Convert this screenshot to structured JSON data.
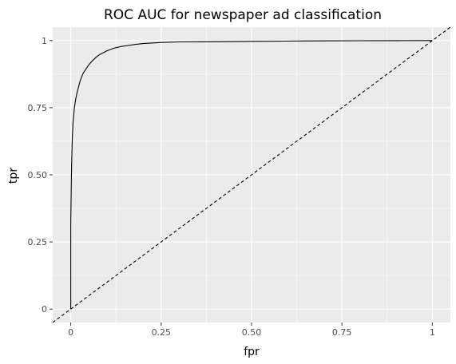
{
  "chart_data": {
    "type": "line",
    "title": "ROC AUC for newspaper ad classification",
    "xlabel": "fpr",
    "ylabel": "tpr",
    "xlim": [
      -0.05,
      1.05
    ],
    "ylim": [
      -0.05,
      1.05
    ],
    "x_ticks": [
      0,
      0.25,
      0.5,
      0.75,
      1
    ],
    "x_tick_labels": [
      "0",
      "0.25",
      "0.50",
      "0.75",
      "1"
    ],
    "y_ticks": [
      0,
      0.25,
      0.5,
      0.75,
      1
    ],
    "y_tick_labels": [
      "0",
      "0.25",
      "0.50",
      "0.75",
      "1"
    ],
    "grid": true,
    "colors": {
      "panel": "#ebebeb",
      "grid": "#ffffff",
      "curve": "#000000",
      "diagonal": "#000000",
      "tick_text": "#4d4d4d",
      "tick_mark": "#333333"
    },
    "series": [
      {
        "style": "solid",
        "x": [
          0,
          0,
          0.002,
          0.004,
          0.006,
          0.008,
          0.01,
          0.014,
          0.018,
          0.022,
          0.026,
          0.03,
          0.035,
          0.04,
          0.045,
          0.05,
          0.06,
          0.07,
          0.08,
          0.09,
          0.1,
          0.12,
          0.14,
          0.16,
          0.18,
          0.2,
          0.25,
          0.3,
          0.4,
          0.5,
          0.6,
          0.7,
          0.8,
          0.9,
          1
        ],
        "y": [
          0,
          0.33,
          0.52,
          0.63,
          0.69,
          0.72,
          0.75,
          0.785,
          0.81,
          0.83,
          0.85,
          0.865,
          0.88,
          0.89,
          0.9,
          0.91,
          0.925,
          0.938,
          0.948,
          0.955,
          0.962,
          0.972,
          0.978,
          0.982,
          0.986,
          0.989,
          0.993,
          0.995,
          0.996,
          0.997,
          0.998,
          0.999,
          0.9995,
          0.9998,
          1
        ]
      },
      {
        "style": "dashed",
        "x": [
          -0.05,
          1.05
        ],
        "y": [
          -0.05,
          1.05
        ]
      }
    ]
  }
}
